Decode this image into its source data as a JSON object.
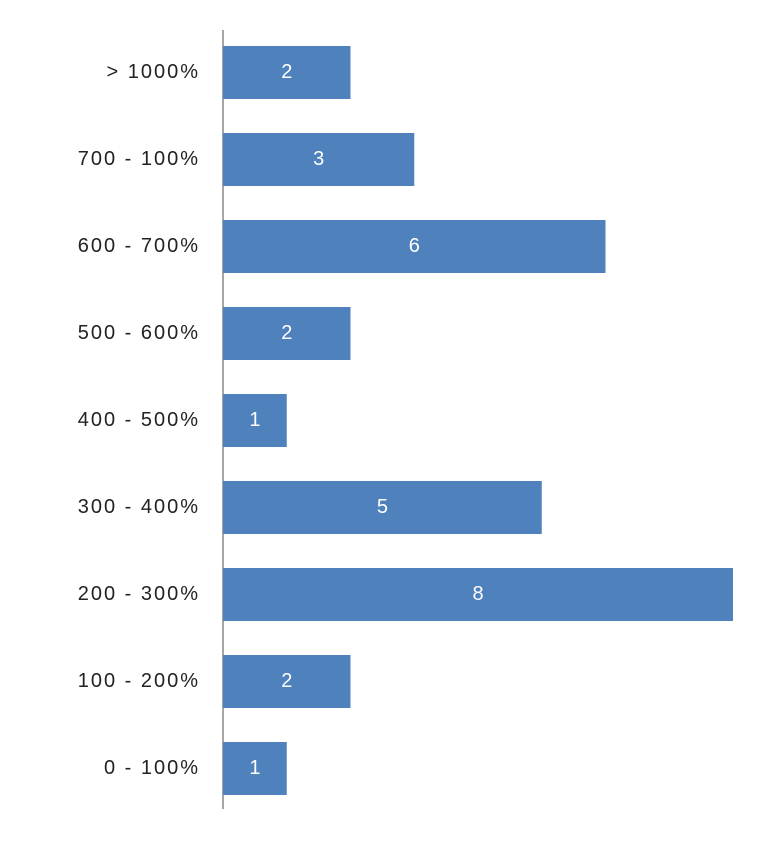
{
  "chart_data": {
    "type": "hbar",
    "categories": [
      "> 1000%",
      "700 - 100%",
      "600 - 700%",
      "500 - 600%",
      "400 - 500%",
      "300 - 400%",
      "200 - 300%",
      "100 - 200%",
      "0 - 100%"
    ],
    "values": [
      2,
      3,
      6,
      2,
      1,
      5,
      8,
      2,
      1
    ],
    "color": "#4f81bd"
  }
}
